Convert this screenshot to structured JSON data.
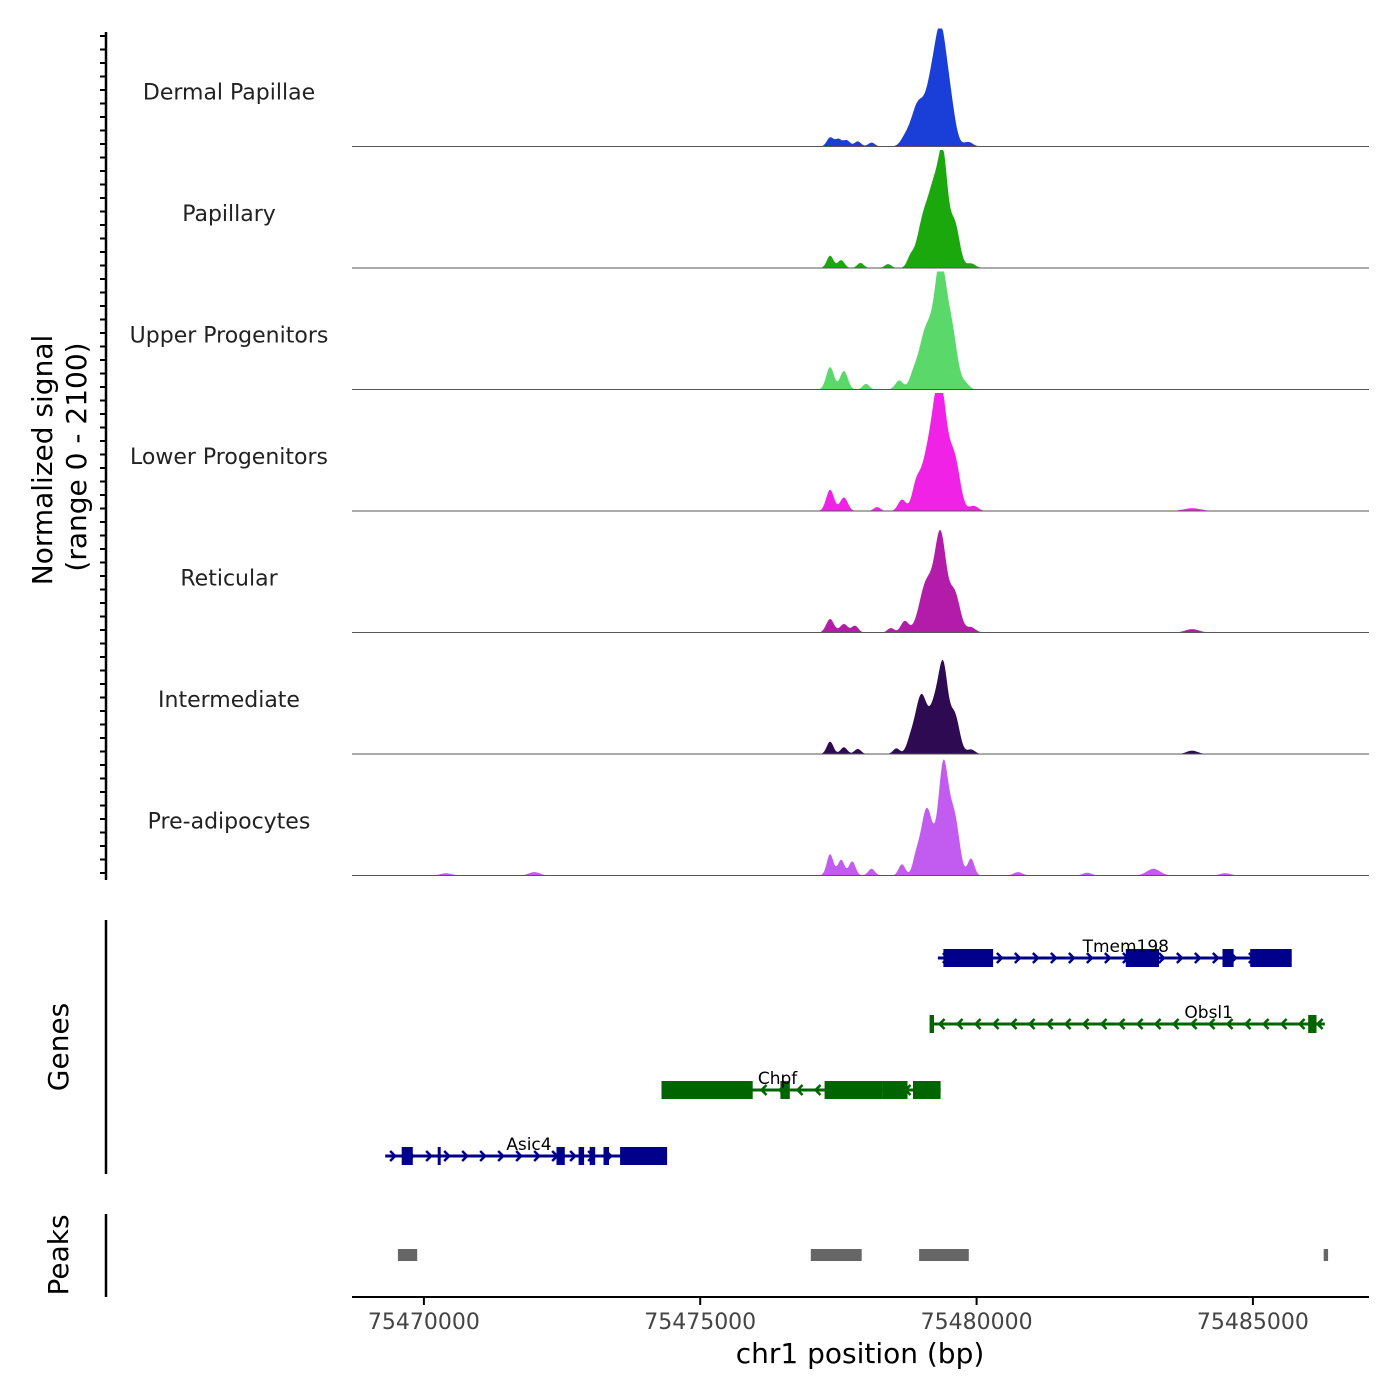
{
  "chart_data": {
    "type": "area",
    "title": "",
    "signal_ylabel": "Normalized signal",
    "signal_range_label": "(range 0 - 2100)",
    "ylim": [
      0,
      2100
    ],
    "xlabel": "chr1 position (bp)",
    "xlim": [
      75468700,
      75487100
    ],
    "x_ticks": [
      75470000,
      75475000,
      75480000,
      75485000
    ],
    "x_tick_labels": [
      "75470000",
      "75475000",
      "75480000",
      "75485000"
    ],
    "tracks": [
      {
        "name": "Dermal Papillae",
        "color": "#1a3ed8",
        "peaks": [
          {
            "center": 75477350,
            "height": 160,
            "width": 60
          },
          {
            "center": 75477500,
            "height": 130,
            "width": 60
          },
          {
            "center": 75477650,
            "height": 110,
            "width": 60
          },
          {
            "center": 75477850,
            "height": 90,
            "width": 60
          },
          {
            "center": 75478100,
            "height": 70,
            "width": 60
          },
          {
            "center": 75478700,
            "height": 110,
            "width": 80
          },
          {
            "center": 75478950,
            "height": 780,
            "width": 130
          },
          {
            "center": 75479200,
            "height": 1050,
            "width": 100
          },
          {
            "center": 75479350,
            "height": 1550,
            "width": 90
          },
          {
            "center": 75479500,
            "height": 900,
            "width": 100
          },
          {
            "center": 75479850,
            "height": 80,
            "width": 80
          }
        ]
      },
      {
        "name": "Papillary",
        "color": "#1aa80c",
        "peaks": [
          {
            "center": 75477350,
            "height": 220,
            "width": 60
          },
          {
            "center": 75477550,
            "height": 140,
            "width": 60
          },
          {
            "center": 75477900,
            "height": 90,
            "width": 60
          },
          {
            "center": 75478400,
            "height": 70,
            "width": 60
          },
          {
            "center": 75478800,
            "height": 150,
            "width": 60
          },
          {
            "center": 75479050,
            "height": 900,
            "width": 120
          },
          {
            "center": 75479250,
            "height": 1200,
            "width": 100
          },
          {
            "center": 75479400,
            "height": 1650,
            "width": 80
          },
          {
            "center": 75479600,
            "height": 800,
            "width": 90
          },
          {
            "center": 75479900,
            "height": 80,
            "width": 80
          }
        ]
      },
      {
        "name": "Upper Progenitors",
        "color": "#5ad86a",
        "peaks": [
          {
            "center": 75477350,
            "height": 400,
            "width": 70
          },
          {
            "center": 75477600,
            "height": 330,
            "width": 70
          },
          {
            "center": 75478000,
            "height": 100,
            "width": 60
          },
          {
            "center": 75478600,
            "height": 160,
            "width": 70
          },
          {
            "center": 75478850,
            "height": 150,
            "width": 70
          },
          {
            "center": 75479100,
            "height": 1100,
            "width": 140
          },
          {
            "center": 75479350,
            "height": 2000,
            "width": 100
          },
          {
            "center": 75479550,
            "height": 1000,
            "width": 100
          },
          {
            "center": 75479800,
            "height": 100,
            "width": 70
          }
        ]
      },
      {
        "name": "Lower Progenitors",
        "color": "#f022e6",
        "peaks": [
          {
            "center": 75477350,
            "height": 380,
            "width": 70
          },
          {
            "center": 75477600,
            "height": 240,
            "width": 70
          },
          {
            "center": 75478200,
            "height": 70,
            "width": 60
          },
          {
            "center": 75478650,
            "height": 200,
            "width": 70
          },
          {
            "center": 75478900,
            "height": 300,
            "width": 70
          },
          {
            "center": 75479150,
            "height": 1100,
            "width": 150
          },
          {
            "center": 75479350,
            "height": 1900,
            "width": 110
          },
          {
            "center": 75479600,
            "height": 900,
            "width": 100
          },
          {
            "center": 75479950,
            "height": 90,
            "width": 80
          },
          {
            "center": 75483900,
            "height": 50,
            "width": 150
          }
        ]
      },
      {
        "name": "Reticular",
        "color": "#b21ca8",
        "peaks": [
          {
            "center": 75477350,
            "height": 240,
            "width": 70
          },
          {
            "center": 75477600,
            "height": 150,
            "width": 70
          },
          {
            "center": 75477800,
            "height": 120,
            "width": 60
          },
          {
            "center": 75478450,
            "height": 80,
            "width": 60
          },
          {
            "center": 75478700,
            "height": 200,
            "width": 70
          },
          {
            "center": 75479100,
            "height": 900,
            "width": 130
          },
          {
            "center": 75479350,
            "height": 1650,
            "width": 100
          },
          {
            "center": 75479600,
            "height": 700,
            "width": 100
          },
          {
            "center": 75479900,
            "height": 90,
            "width": 80
          },
          {
            "center": 75483900,
            "height": 60,
            "width": 120
          }
        ]
      },
      {
        "name": "Intermediate",
        "color": "#2e0a52",
        "peaks": [
          {
            "center": 75477350,
            "height": 220,
            "width": 60
          },
          {
            "center": 75477600,
            "height": 120,
            "width": 60
          },
          {
            "center": 75477850,
            "height": 90,
            "width": 60
          },
          {
            "center": 75478550,
            "height": 100,
            "width": 60
          },
          {
            "center": 75478800,
            "height": 180,
            "width": 70
          },
          {
            "center": 75479000,
            "height": 1050,
            "width": 110
          },
          {
            "center": 75479250,
            "height": 800,
            "width": 90
          },
          {
            "center": 75479400,
            "height": 1400,
            "width": 80
          },
          {
            "center": 75479600,
            "height": 700,
            "width": 90
          },
          {
            "center": 75479900,
            "height": 80,
            "width": 70
          },
          {
            "center": 75483900,
            "height": 60,
            "width": 100
          }
        ]
      },
      {
        "name": "Pre-adipocytes",
        "color": "#c25cf0",
        "peaks": [
          {
            "center": 75470400,
            "height": 40,
            "width": 100
          },
          {
            "center": 75472000,
            "height": 60,
            "width": 100
          },
          {
            "center": 75477350,
            "height": 380,
            "width": 60
          },
          {
            "center": 75477550,
            "height": 280,
            "width": 60
          },
          {
            "center": 75477750,
            "height": 250,
            "width": 60
          },
          {
            "center": 75478100,
            "height": 120,
            "width": 60
          },
          {
            "center": 75478650,
            "height": 200,
            "width": 60
          },
          {
            "center": 75478900,
            "height": 220,
            "width": 60
          },
          {
            "center": 75479100,
            "height": 1200,
            "width": 110
          },
          {
            "center": 75479400,
            "height": 1950,
            "width": 90
          },
          {
            "center": 75479600,
            "height": 1000,
            "width": 90
          },
          {
            "center": 75479900,
            "height": 300,
            "width": 60
          },
          {
            "center": 75480750,
            "height": 60,
            "width": 80
          },
          {
            "center": 75482000,
            "height": 50,
            "width": 80
          },
          {
            "center": 75483200,
            "height": 120,
            "width": 120
          },
          {
            "center": 75484500,
            "height": 40,
            "width": 100
          }
        ]
      }
    ],
    "genes_label": "Genes",
    "genes": [
      {
        "name": "Tmem198",
        "strand": "+",
        "start": 75479300,
        "end": 75485700,
        "row": 0,
        "color": "#00008b",
        "exons": [
          [
            75479400,
            75480300
          ],
          [
            75482700,
            75483300
          ],
          [
            75484450,
            75484650
          ],
          [
            75484950,
            75485700
          ]
        ],
        "label_pos": 75482700
      },
      {
        "name": "Obsl1",
        "strand": "-",
        "start": 75479150,
        "end": 75486300,
        "row": 1,
        "color": "#006400",
        "exons": [
          [
            75479150,
            75479230
          ],
          [
            75486000,
            75486150
          ]
        ],
        "label_pos": 75484200
      },
      {
        "name": "Chpf",
        "strand": "-",
        "start": 75474300,
        "end": 75479350,
        "row": 2,
        "color": "#006400",
        "exons": [
          [
            75474300,
            75475950
          ],
          [
            75476450,
            75476620
          ],
          [
            75477250,
            75478300
          ],
          [
            75478300,
            75478750
          ],
          [
            75478850,
            75479350
          ]
        ],
        "label_pos": 75476400
      },
      {
        "name": "Asic4",
        "strand": "+",
        "start": 75469300,
        "end": 75474400,
        "row": 3,
        "color": "#00008b",
        "exons": [
          [
            75469600,
            75469800
          ],
          [
            75470250,
            75470300
          ],
          [
            75472400,
            75472550
          ],
          [
            75472800,
            75472900
          ],
          [
            75473000,
            75473100
          ],
          [
            75473250,
            75473350
          ],
          [
            75473550,
            75474400
          ]
        ],
        "label_pos": 75471900
      }
    ],
    "peaks_label": "Peaks",
    "peak_regions": [
      [
        75469530,
        75469880
      ],
      [
        75477000,
        75477920
      ],
      [
        75478960,
        75479860
      ],
      [
        75486280,
        75486360
      ]
    ],
    "peak_color": "#666666"
  }
}
